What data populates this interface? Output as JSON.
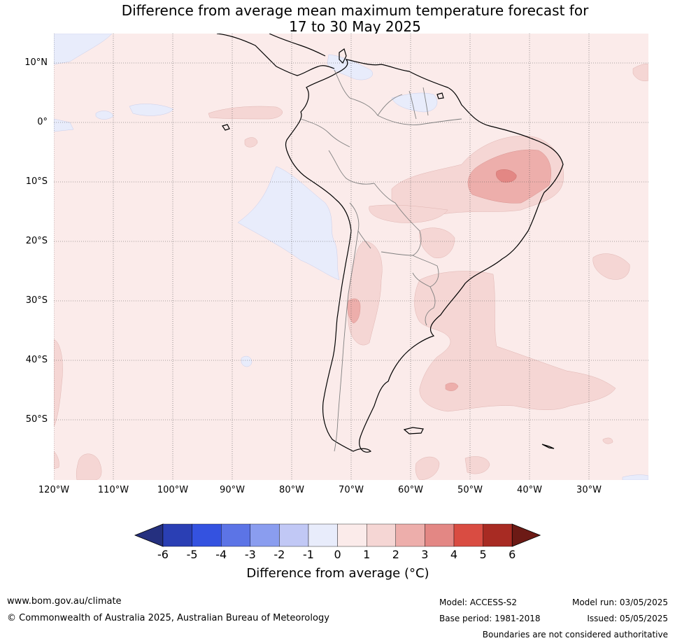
{
  "title": {
    "line1": "Difference from average mean maximum temperature forecast for",
    "line2": "17 to 30 May 2025"
  },
  "map": {
    "latitude_labels": [
      "10°N",
      "0°",
      "10°S",
      "20°S",
      "30°S",
      "40°S",
      "50°S"
    ],
    "longitude_labels": [
      "120°W",
      "110°W",
      "100°W",
      "90°W",
      "80°W",
      "70°W",
      "60°W",
      "50°W",
      "40°W",
      "30°W"
    ],
    "background_anomaly_color": "#fbebea",
    "colors": {
      "negative_1": "#e8ecfb",
      "positive_1_2": "#f5d6d4",
      "positive_2_3": "#edaeab",
      "positive_3_4": "#e38784",
      "coastline": "#000000",
      "borders": "#808080",
      "grid": "#555555"
    }
  },
  "colorbar": {
    "ticks": [
      "-6",
      "-5",
      "-4",
      "-3",
      "-2",
      "-1",
      "0",
      "1",
      "2",
      "3",
      "4",
      "5",
      "6"
    ],
    "colors": [
      "#25307f",
      "#2a3fb4",
      "#3452e0",
      "#5c74e6",
      "#8a9def",
      "#c1c8f5",
      "#e8ecfb",
      "#fbebea",
      "#f5d6d4",
      "#edaeab",
      "#e38784",
      "#d94c42",
      "#a82b23",
      "#6c1a15"
    ],
    "label": "Difference from average (°C)"
  },
  "footer": {
    "website": "www.bom.gov.au/climate",
    "copyright": "© Commonwealth of Australia 2025, Australian Bureau of Meteorology",
    "model": "Model: ACCESS-S2",
    "base_period": "Base period: 1981-2018",
    "model_run": "Model run: 03/05/2025",
    "issued": "Issued: 05/05/2025",
    "disclaimer": "Boundaries are not considered authoritative"
  }
}
